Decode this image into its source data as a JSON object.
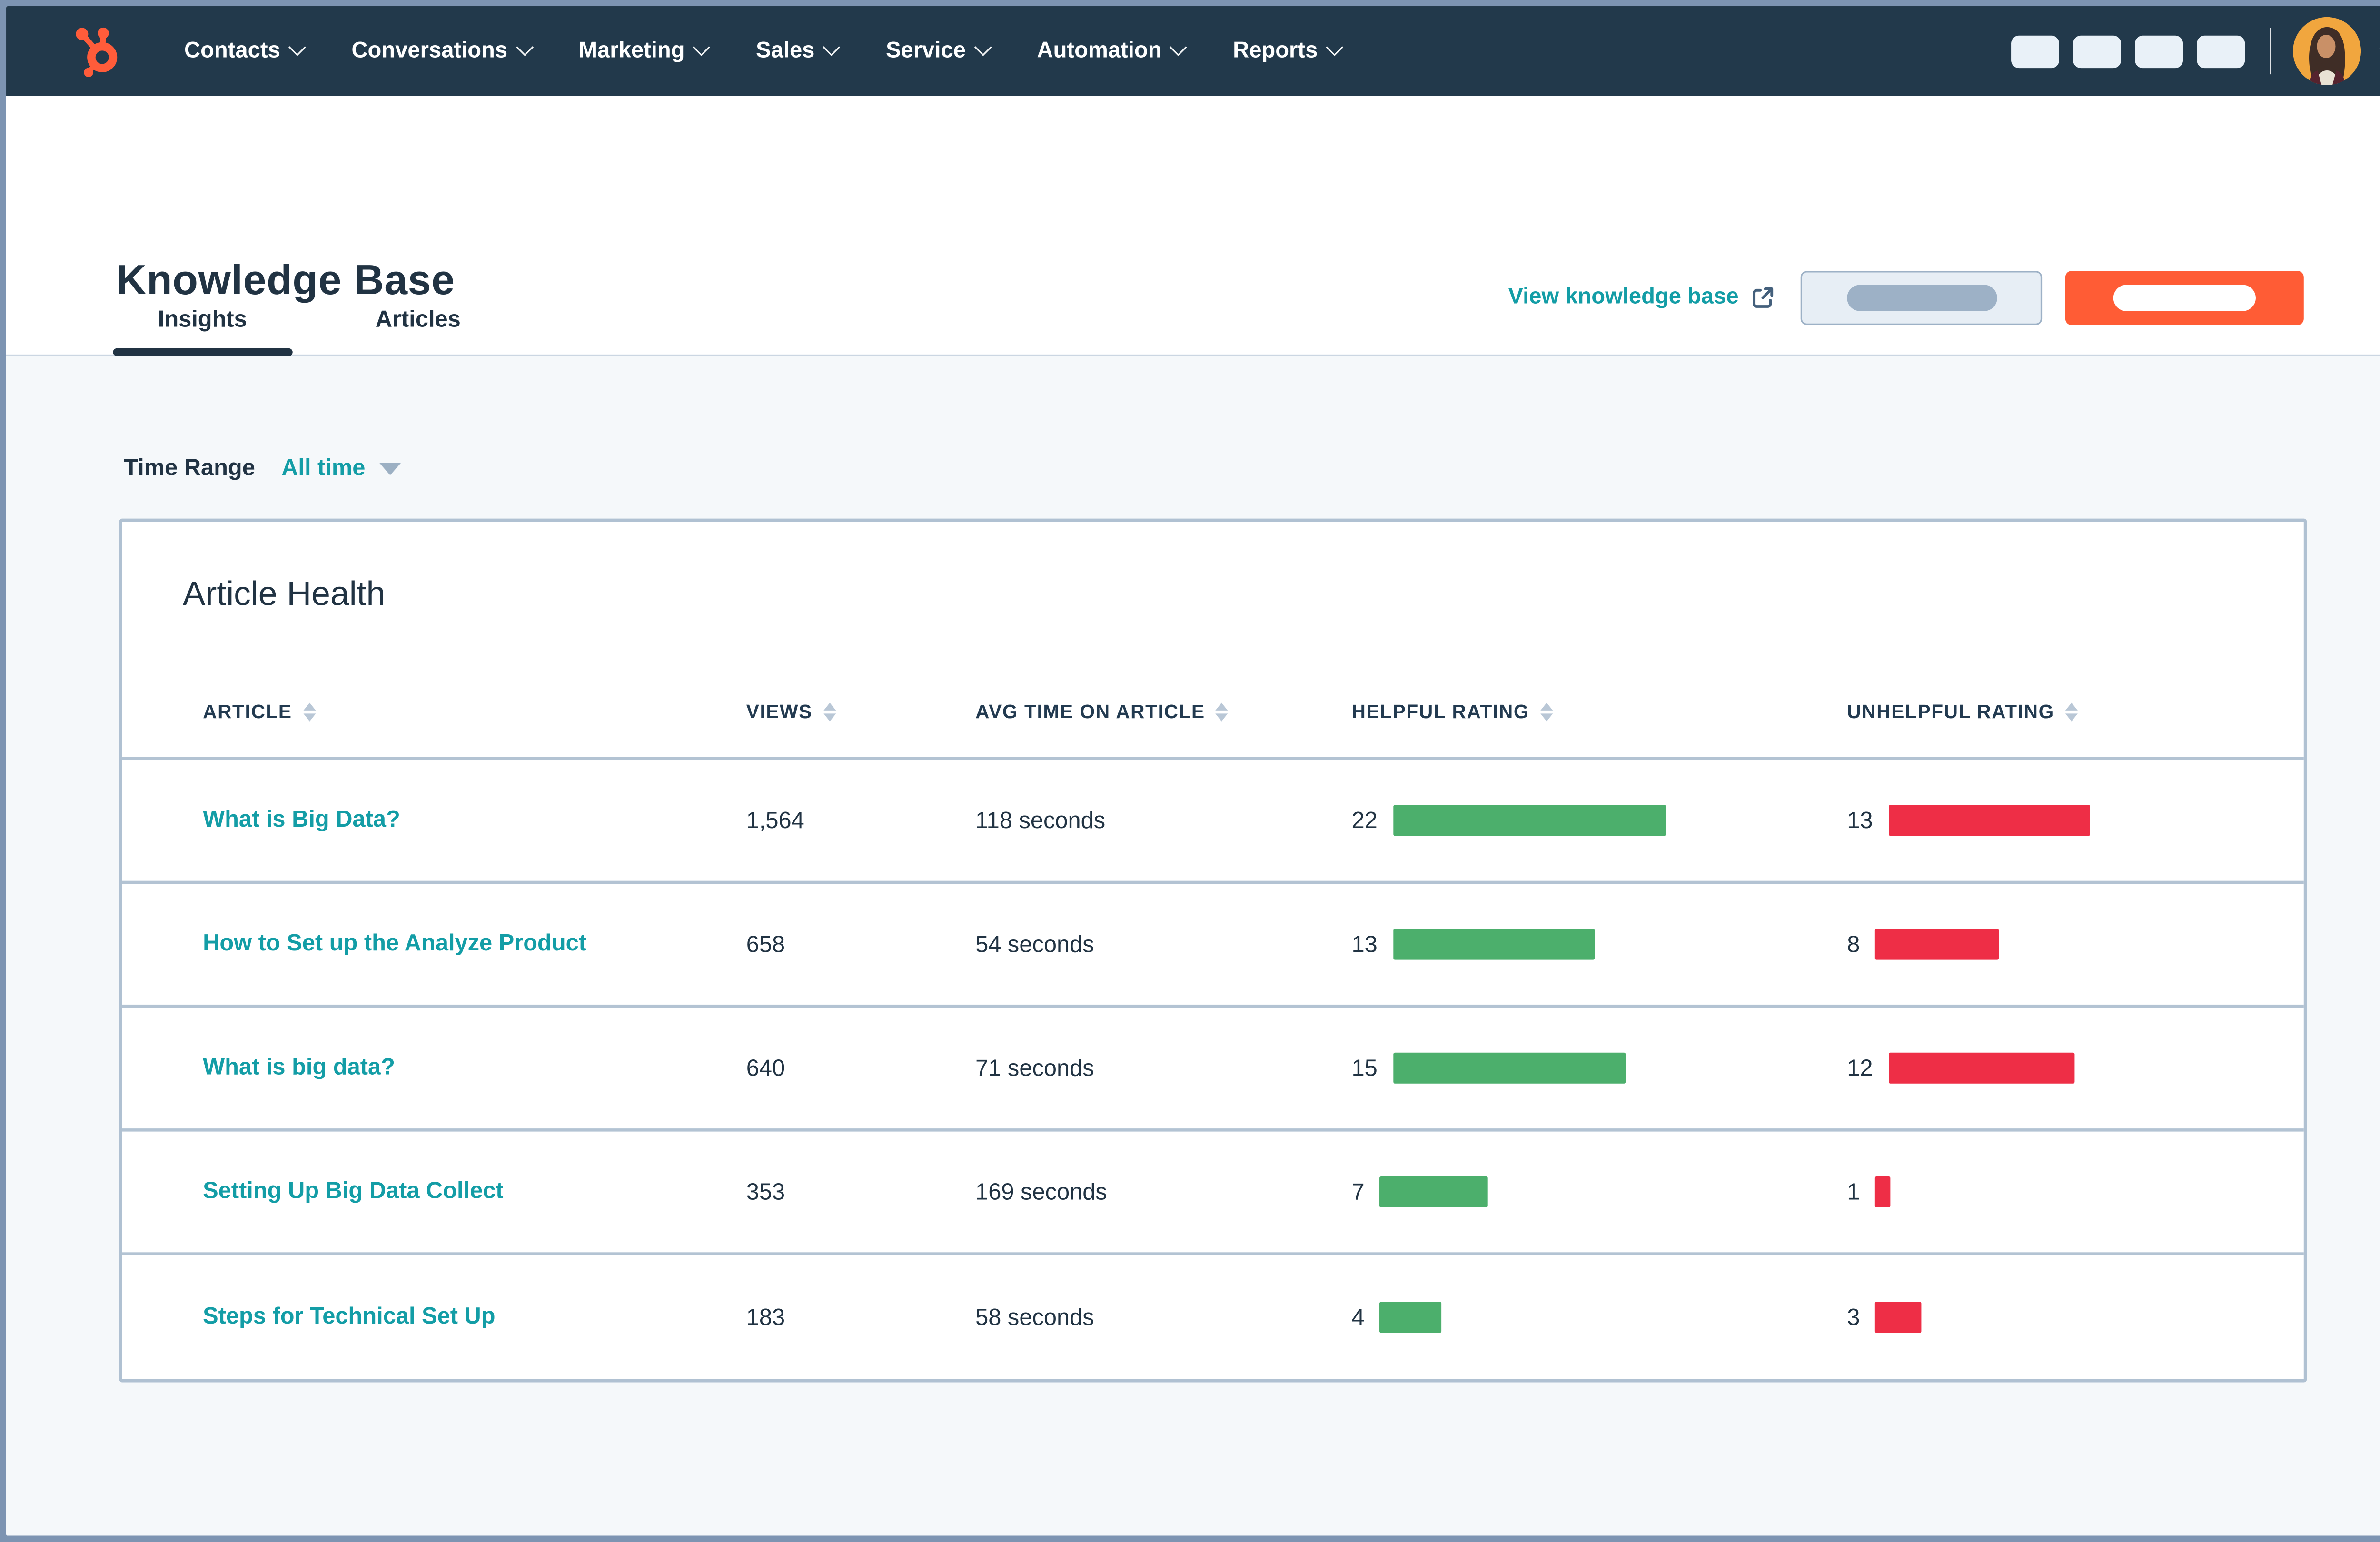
{
  "colors": {
    "nav_background": "#22394b",
    "brand_orange": "#ff5c35",
    "link_teal": "#139da6",
    "heading_navy": "#213343",
    "green": "#4caf6c",
    "red": "#ee2e46",
    "page_background": "#f5f8fa",
    "frame_border": "#7d94b2"
  },
  "nav": {
    "logo": "hubspot-sprocket",
    "items": [
      {
        "label": "Contacts"
      },
      {
        "label": "Conversations"
      },
      {
        "label": "Marketing"
      },
      {
        "label": "Sales"
      },
      {
        "label": "Service"
      },
      {
        "label": "Automation"
      },
      {
        "label": "Reports"
      }
    ],
    "toolbar_placeholder_count": 4,
    "user_menu": {
      "avatar": "user-photo-woman-on-orange",
      "has_dropdown": true
    }
  },
  "header": {
    "title": "Knowledge Base",
    "view_link_label": "View knowledge base",
    "secondary_button": {
      "redacted": true
    },
    "primary_button": {
      "redacted": true
    },
    "tabs": [
      {
        "label": "Insights",
        "active": true
      },
      {
        "label": "Articles",
        "active": false
      }
    ]
  },
  "filters": {
    "label": "Time Range",
    "value": "All time"
  },
  "table": {
    "title": "Article Health",
    "columns": [
      {
        "label": "ARTICLE",
        "sortable": true
      },
      {
        "label": "VIEWS",
        "sortable": true
      },
      {
        "label": "AVG TIME ON ARTICLE",
        "sortable": true
      },
      {
        "label": "HELPFUL RATING",
        "sortable": true
      },
      {
        "label": "UNHELPFUL RATING",
        "sortable": true
      }
    ],
    "rows": [
      {
        "article": "What is Big Data?",
        "views": "1,564",
        "avg_time": "118 seconds",
        "helpful": 22,
        "unhelpful": 13
      },
      {
        "article": "How to Set up the Analyze Product",
        "views": "658",
        "avg_time": "54 seconds",
        "helpful": 13,
        "unhelpful": 8
      },
      {
        "article": "What is big data?",
        "views": "640",
        "avg_time": "71 seconds",
        "helpful": 15,
        "unhelpful": 12
      },
      {
        "article": "Setting Up Big Data Collect",
        "views": "353",
        "avg_time": "169 seconds",
        "helpful": 7,
        "unhelpful": 1
      },
      {
        "article": "Steps for Technical Set Up",
        "views": "183",
        "avg_time": "58 seconds",
        "helpful": 4,
        "unhelpful": 3
      }
    ]
  }
}
